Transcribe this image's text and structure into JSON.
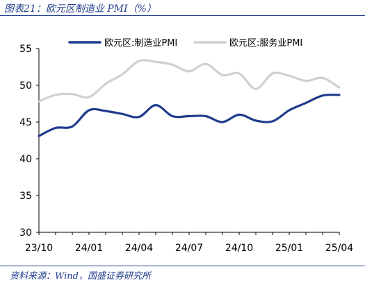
{
  "header": {
    "title": "图表21：欧元区制造业 PMI（%）"
  },
  "footer": {
    "source": "资料来源：Wind，国盛证券研究所"
  },
  "chart_data": {
    "type": "line",
    "title": "",
    "xlabel": "",
    "ylabel": "",
    "ylim": [
      30,
      55
    ],
    "yticks": [
      30,
      35,
      40,
      45,
      50,
      55
    ],
    "xticks": [
      "23/10",
      "24/01",
      "24/04",
      "24/07",
      "24/10",
      "25/01",
      "25/04"
    ],
    "x": [
      "23/10",
      "23/11",
      "23/12",
      "24/01",
      "24/02",
      "24/03",
      "24/04",
      "24/05",
      "24/06",
      "24/07",
      "24/08",
      "24/09",
      "24/10",
      "24/11",
      "24/12",
      "25/01",
      "25/02",
      "25/03",
      "25/04"
    ],
    "grid": false,
    "legend_position": "top-center",
    "series": [
      {
        "name": "欧元区:制造业PMI",
        "color": "#1f3c8c",
        "values": [
          43.1,
          44.2,
          44.4,
          46.6,
          46.5,
          46.1,
          45.7,
          47.3,
          45.8,
          45.8,
          45.8,
          45.0,
          46.0,
          45.2,
          45.1,
          46.6,
          47.6,
          48.6,
          48.7
        ]
      },
      {
        "name": "欧元区:服务业PMI",
        "color": "#d0d0d0",
        "values": [
          47.8,
          48.7,
          48.8,
          48.4,
          50.2,
          51.5,
          53.3,
          53.2,
          52.8,
          51.9,
          52.9,
          51.4,
          51.6,
          49.5,
          51.6,
          51.3,
          50.6,
          51.0,
          49.7
        ]
      }
    ]
  }
}
